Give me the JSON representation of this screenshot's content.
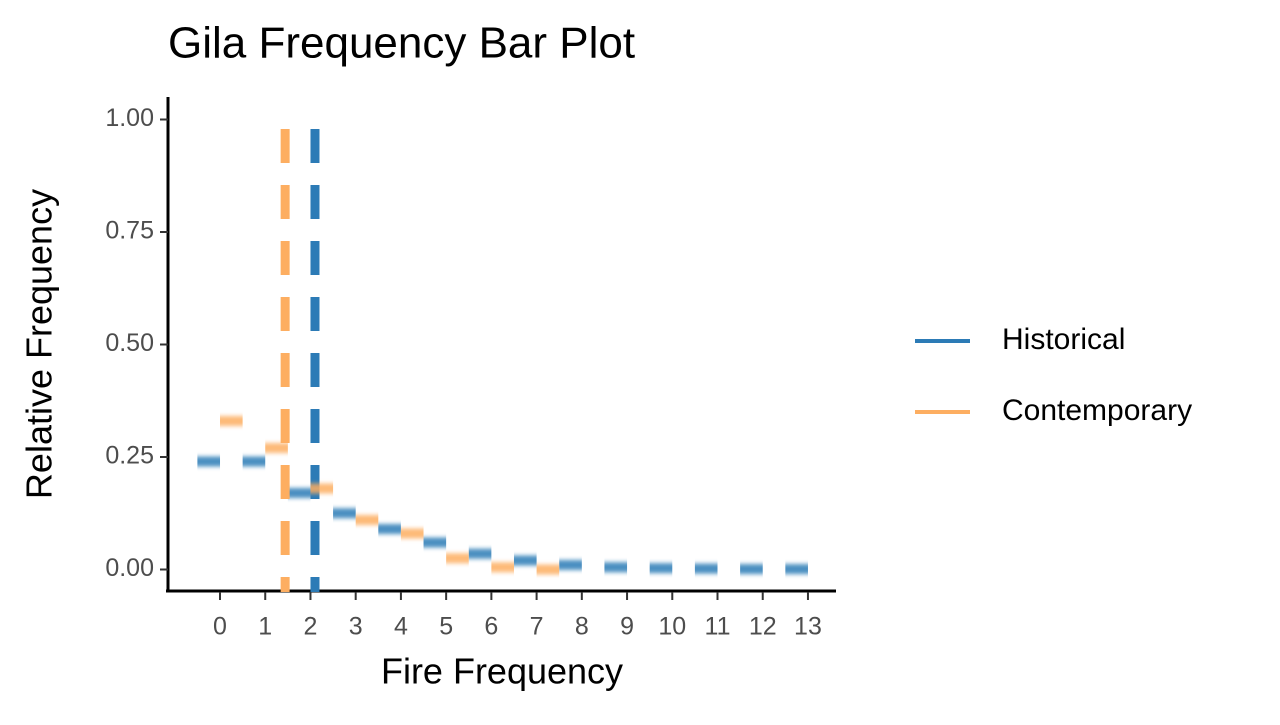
{
  "chart_data": {
    "type": "dodged-segment",
    "title": "Gila Frequency Bar Plot",
    "x_label": "Fire Frequency",
    "y_label": "Relative Frequency",
    "x": [
      0,
      1,
      2,
      3,
      4,
      5,
      6,
      7,
      8,
      9,
      10,
      11,
      12,
      13
    ],
    "series": [
      {
        "name": "Historical",
        "color": "#2c7bb6",
        "mean": 2.1,
        "values": [
          0.24,
          0.24,
          0.17,
          0.125,
          0.09,
          0.06,
          0.035,
          0.02,
          0.01,
          0.005,
          0.003,
          0.002,
          0.001,
          0.001
        ]
      },
      {
        "name": "Contemporary",
        "color": "#fdae61",
        "mean": 1.44,
        "values": [
          0.33,
          0.27,
          0.18,
          0.11,
          0.08,
          0.025,
          0.005,
          0.0,
          null,
          null,
          null,
          null,
          null,
          null
        ]
      }
    ],
    "xlim": [
      -1.15,
      13.62
    ],
    "xticks": [
      0,
      1,
      2,
      3,
      4,
      5,
      6,
      7,
      8,
      9,
      10,
      11,
      12,
      13
    ],
    "ylim": [
      -0.05,
      1.05
    ],
    "yticks": [
      {
        "value": 0,
        "label": "0.00"
      },
      {
        "value": 0.25,
        "label": "0.25"
      },
      {
        "value": 0.5,
        "label": "0.50"
      },
      {
        "value": 0.75,
        "label": "0.75"
      },
      {
        "value": 1,
        "label": "1.00"
      }
    ],
    "grid": false,
    "legend": "right"
  }
}
